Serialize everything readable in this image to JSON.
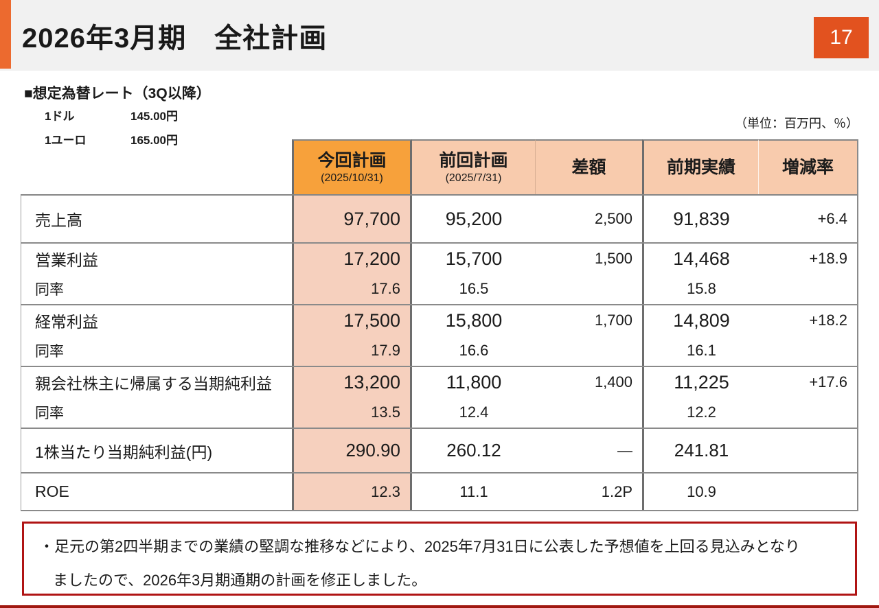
{
  "page": {
    "title": "2026年3月期　全社計画",
    "page_number": "17"
  },
  "fx": {
    "heading": "■想定為替レート（3Q以降）",
    "rates": [
      {
        "label": "1ドル",
        "value": "145.00円"
      },
      {
        "label": "1ユーロ",
        "value": "165.00円"
      }
    ]
  },
  "unit_note": "（単位：百万円、％）",
  "table": {
    "header": {
      "current_label": "今回計画",
      "current_date": "(2025/10/31)",
      "previous_label": "前回計画",
      "previous_date": "(2025/7/31)",
      "diff_label": "差額",
      "prior_label": "前期実績",
      "change_label": "増減率"
    },
    "rows": [
      {
        "label": "売上高",
        "current": "97,700",
        "previous": "95,200",
        "diff": "2,500",
        "prior": "91,839",
        "change": "+6.4"
      },
      {
        "label": "営業利益",
        "sub_label": "同率",
        "current": "17,200",
        "current_sub": "17.6",
        "previous": "15,700",
        "previous_sub": "16.5",
        "diff": "1,500",
        "prior": "14,468",
        "prior_sub": "15.8",
        "change": "+18.9"
      },
      {
        "label": "経常利益",
        "sub_label": "同率",
        "current": "17,500",
        "current_sub": "17.9",
        "previous": "15,800",
        "previous_sub": "16.6",
        "diff": "1,700",
        "prior": "14,809",
        "prior_sub": "16.1",
        "change": "+18.2"
      },
      {
        "label": "親会社株主に帰属する当期純利益",
        "sub_label": "同率",
        "current": "13,200",
        "current_sub": "13.5",
        "previous": "11,800",
        "previous_sub": "12.4",
        "diff": "1,400",
        "prior": "11,225",
        "prior_sub": "12.2",
        "change": "+17.6"
      },
      {
        "label": "1株当たり当期純利益(円)",
        "current": "290.90",
        "previous": "260.12",
        "diff": "—",
        "prior": "241.81",
        "change": ""
      },
      {
        "label": "ROE",
        "current": "12.3",
        "previous": "11.1",
        "diff": "1.2P",
        "prior": "10.9",
        "change": ""
      }
    ]
  },
  "note": {
    "line1": "・足元の第2四半期までの業績の堅調な推移などにより、2025年7月31日に公表した予想値を上回る見込みとなり",
    "line2": "ましたので、2026年3月期通期の計画を修正しました。"
  },
  "colors": {
    "accent_orange": "#EC6A2F",
    "page_badge_orange": "#E2521F",
    "header_cell_orange": "#F7A13B",
    "header_cell_peach": "#F8CBAD",
    "body_cell_peach": "#F6D0BE",
    "note_border_red": "#B01414",
    "title_bar_gray": "#F1F1F1"
  }
}
